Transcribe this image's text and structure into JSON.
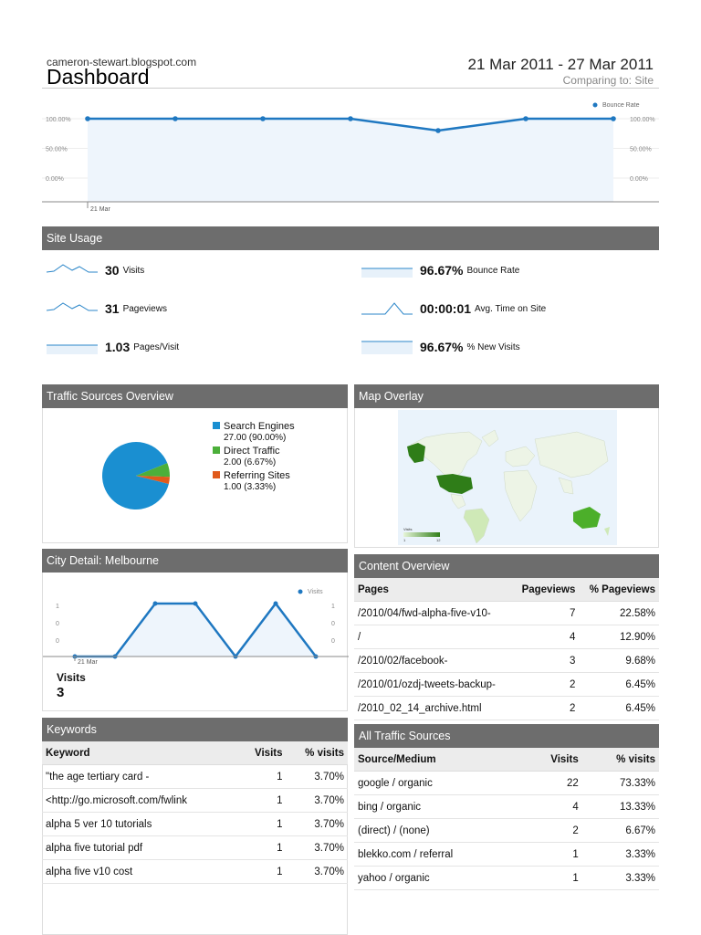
{
  "header": {
    "site": "cameron-stewart.blogspot.com",
    "title": "Dashboard",
    "date_range": "21 Mar 2011 - 27 Mar 2011",
    "comparing": "Comparing to: Site"
  },
  "main_chart": {
    "legend": "Bounce Rate",
    "color": "#1f78c1",
    "y_ticks_left": [
      "100.00%",
      "50.00%",
      "0.00%"
    ],
    "y_ticks_right": [
      "100.00%",
      "50.00%",
      "0.00%"
    ],
    "x_label": "21 Mar",
    "values": [
      100,
      100,
      100,
      100,
      80,
      100,
      100
    ]
  },
  "site_usage": {
    "title": "Site Usage",
    "metrics": [
      {
        "value": "30",
        "label": "Visits"
      },
      {
        "value": "31",
        "label": "Pageviews"
      },
      {
        "value": "1.03",
        "label": "Pages/Visit"
      },
      {
        "value": "96.67%",
        "label": "Bounce Rate"
      },
      {
        "value": "00:00:01",
        "label": "Avg. Time on Site"
      },
      {
        "value": "96.67%",
        "label": "% New Visits"
      }
    ]
  },
  "traffic_overview": {
    "title": "Traffic Sources Overview",
    "items": [
      {
        "name": "Search Engines",
        "detail": "27.00 (90.00%)",
        "color": "#1a8fd1",
        "pct": 90
      },
      {
        "name": "Direct Traffic",
        "detail": "2.00 (6.67%)",
        "color": "#4caf3a",
        "pct": 6.67
      },
      {
        "name": "Referring Sites",
        "detail": "1.00 (3.33%)",
        "color": "#e05a1c",
        "pct": 3.33
      }
    ]
  },
  "map": {
    "title": "Map Overlay",
    "scale_label": "Visits",
    "scale_min": "1",
    "scale_max": "12"
  },
  "city": {
    "title": "City Detail: Melbourne",
    "legend": "Visits",
    "y_ticks": [
      "1",
      "0",
      "0"
    ],
    "x_label": "21 Mar",
    "values": [
      0,
      0,
      1,
      1,
      0,
      1,
      0
    ],
    "summary_label": "Visits",
    "summary_value": "3"
  },
  "content": {
    "title": "Content Overview",
    "headers": [
      "Pages",
      "Pageviews",
      "% Pageviews"
    ],
    "rows": [
      [
        "/2010/04/fwd-alpha-five-v10-",
        "7",
        "22.58%"
      ],
      [
        "/",
        "4",
        "12.90%"
      ],
      [
        "/2010/02/facebook-",
        "3",
        "9.68%"
      ],
      [
        "/2010/01/ozdj-tweets-backup-",
        "2",
        "6.45%"
      ],
      [
        "/2010_02_14_archive.html",
        "2",
        "6.45%"
      ]
    ]
  },
  "keywords": {
    "title": "Keywords",
    "headers": [
      "Keyword",
      "Visits",
      "% visits"
    ],
    "rows": [
      [
        "\"the age tertiary card -",
        "1",
        "3.70%"
      ],
      [
        "<http://go.microsoft.com/fwlink",
        "1",
        "3.70%"
      ],
      [
        "alpha 5 ver 10 tutorials",
        "1",
        "3.70%"
      ],
      [
        "alpha five tutorial pdf",
        "1",
        "3.70%"
      ],
      [
        "alpha five v10 cost",
        "1",
        "3.70%"
      ]
    ]
  },
  "all_traffic": {
    "title": "All Traffic Sources",
    "headers": [
      "Source/Medium",
      "Visits",
      "% visits"
    ],
    "rows": [
      [
        "google / organic",
        "22",
        "73.33%"
      ],
      [
        "bing / organic",
        "4",
        "13.33%"
      ],
      [
        "(direct) / (none)",
        "2",
        "6.67%"
      ],
      [
        "blekko.com / referral",
        "1",
        "3.33%"
      ],
      [
        "yahoo / organic",
        "1",
        "3.33%"
      ]
    ]
  }
}
